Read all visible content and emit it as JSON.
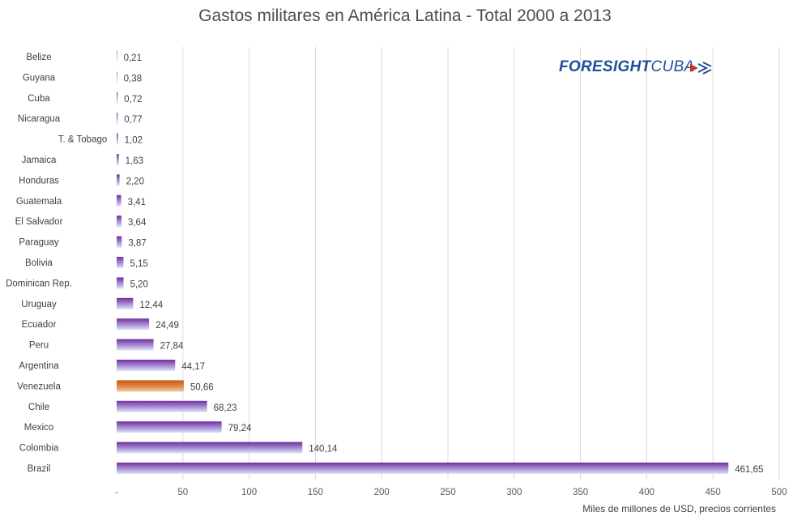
{
  "logo": {
    "text_bold": "FORESIGHT",
    "text_light": "CUBA",
    "mark_icon": "chevrons-flag-icon",
    "color": "#1f4e9c",
    "accent": "#c0392b"
  },
  "chart_data": {
    "type": "bar",
    "orientation": "horizontal",
    "title": "Gastos militares en América Latina - Total 2000 a 2013",
    "xlabel": "Miles de millones de USD, precios corrientes",
    "ylabel": "",
    "xlim": [
      0,
      500
    ],
    "x_ticks": [
      0,
      50,
      100,
      150,
      200,
      250,
      300,
      350,
      400,
      450,
      500
    ],
    "x_tick_labels": [
      "-",
      "50",
      "100",
      "150",
      "200",
      "250",
      "300",
      "350",
      "400",
      "450",
      "500"
    ],
    "grid": "vertical",
    "legend": "none",
    "categories": [
      "Belize",
      "Guyana",
      "Cuba",
      "Nicaragua",
      "T. & Tobago",
      "Jamaica",
      "Honduras",
      "Guatemala",
      "El Salvador",
      "Paraguay",
      "Bolivia",
      "Dominican Rep.",
      "Uruguay",
      "Ecuador",
      "Peru",
      "Argentina",
      "Venezuela",
      "Chile",
      "Mexico",
      "Colombia",
      "Brazil"
    ],
    "values": [
      0.21,
      0.38,
      0.72,
      0.77,
      1.02,
      1.63,
      2.2,
      3.41,
      3.64,
      3.87,
      5.15,
      5.2,
      12.44,
      24.49,
      27.84,
      44.17,
      50.66,
      68.23,
      79.24,
      140.14,
      461.65
    ],
    "value_labels": [
      "0,21",
      "0,38",
      "0,72",
      "0,77",
      "1,02",
      "1,63",
      "2,20",
      "3,41",
      "3,64",
      "3,87",
      "5,15",
      "5,20",
      "12,44",
      "24,49",
      "27,84",
      "44,17",
      "50,66",
      "68,23",
      "79,24",
      "140,14",
      "461,65"
    ],
    "colors": {
      "bar_top": "#7030a0",
      "bar_bottom": "#dfe6f7",
      "highlight_top": "#c55a11",
      "highlight_bottom": "#f4c9a5",
      "highlight_category": "Venezuela"
    }
  }
}
